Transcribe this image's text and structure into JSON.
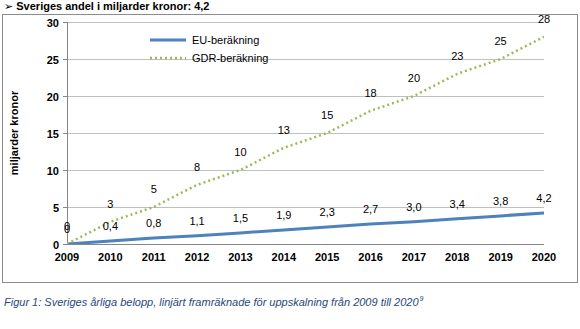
{
  "chart_data": {
    "type": "line",
    "title": "➢ Sveriges andel i miljarder kronor: 4,2",
    "y_label": "miljarder kronor",
    "caption": "Figur 1: Sveriges årliga belopp, linjärt framräknade för uppskalning från 2009 till 2020",
    "caption_note": "9",
    "categories": [
      "2009",
      "2010",
      "2011",
      "2012",
      "2013",
      "2014",
      "2015",
      "2016",
      "2017",
      "2018",
      "2019",
      "2020"
    ],
    "series": [
      {
        "name": "EU-beräkning",
        "color": "#4f81bd",
        "line_style": "solid",
        "values": [
          0,
          0.4,
          0.8,
          1.1,
          1.5,
          1.9,
          2.3,
          2.7,
          3.0,
          3.4,
          3.8,
          4.2
        ],
        "value_labels": [
          "0",
          "0,4",
          "0,8",
          "1,1",
          "1,5",
          "1,9",
          "2,3",
          "2,7",
          "3,0",
          "3,4",
          "3,8",
          "4,2"
        ]
      },
      {
        "name": "GDR-beräkning",
        "color": "#9bbb59",
        "line_style": "dotted",
        "values": [
          0,
          3,
          5,
          8,
          10,
          13,
          15,
          18,
          20,
          23,
          25,
          28
        ]
      }
    ],
    "ylim": [
      0,
      30
    ],
    "yticks": [
      0,
      5,
      10,
      15,
      20,
      25,
      30
    ],
    "grid": true,
    "legend": "upper left",
    "data_labels": true
  }
}
